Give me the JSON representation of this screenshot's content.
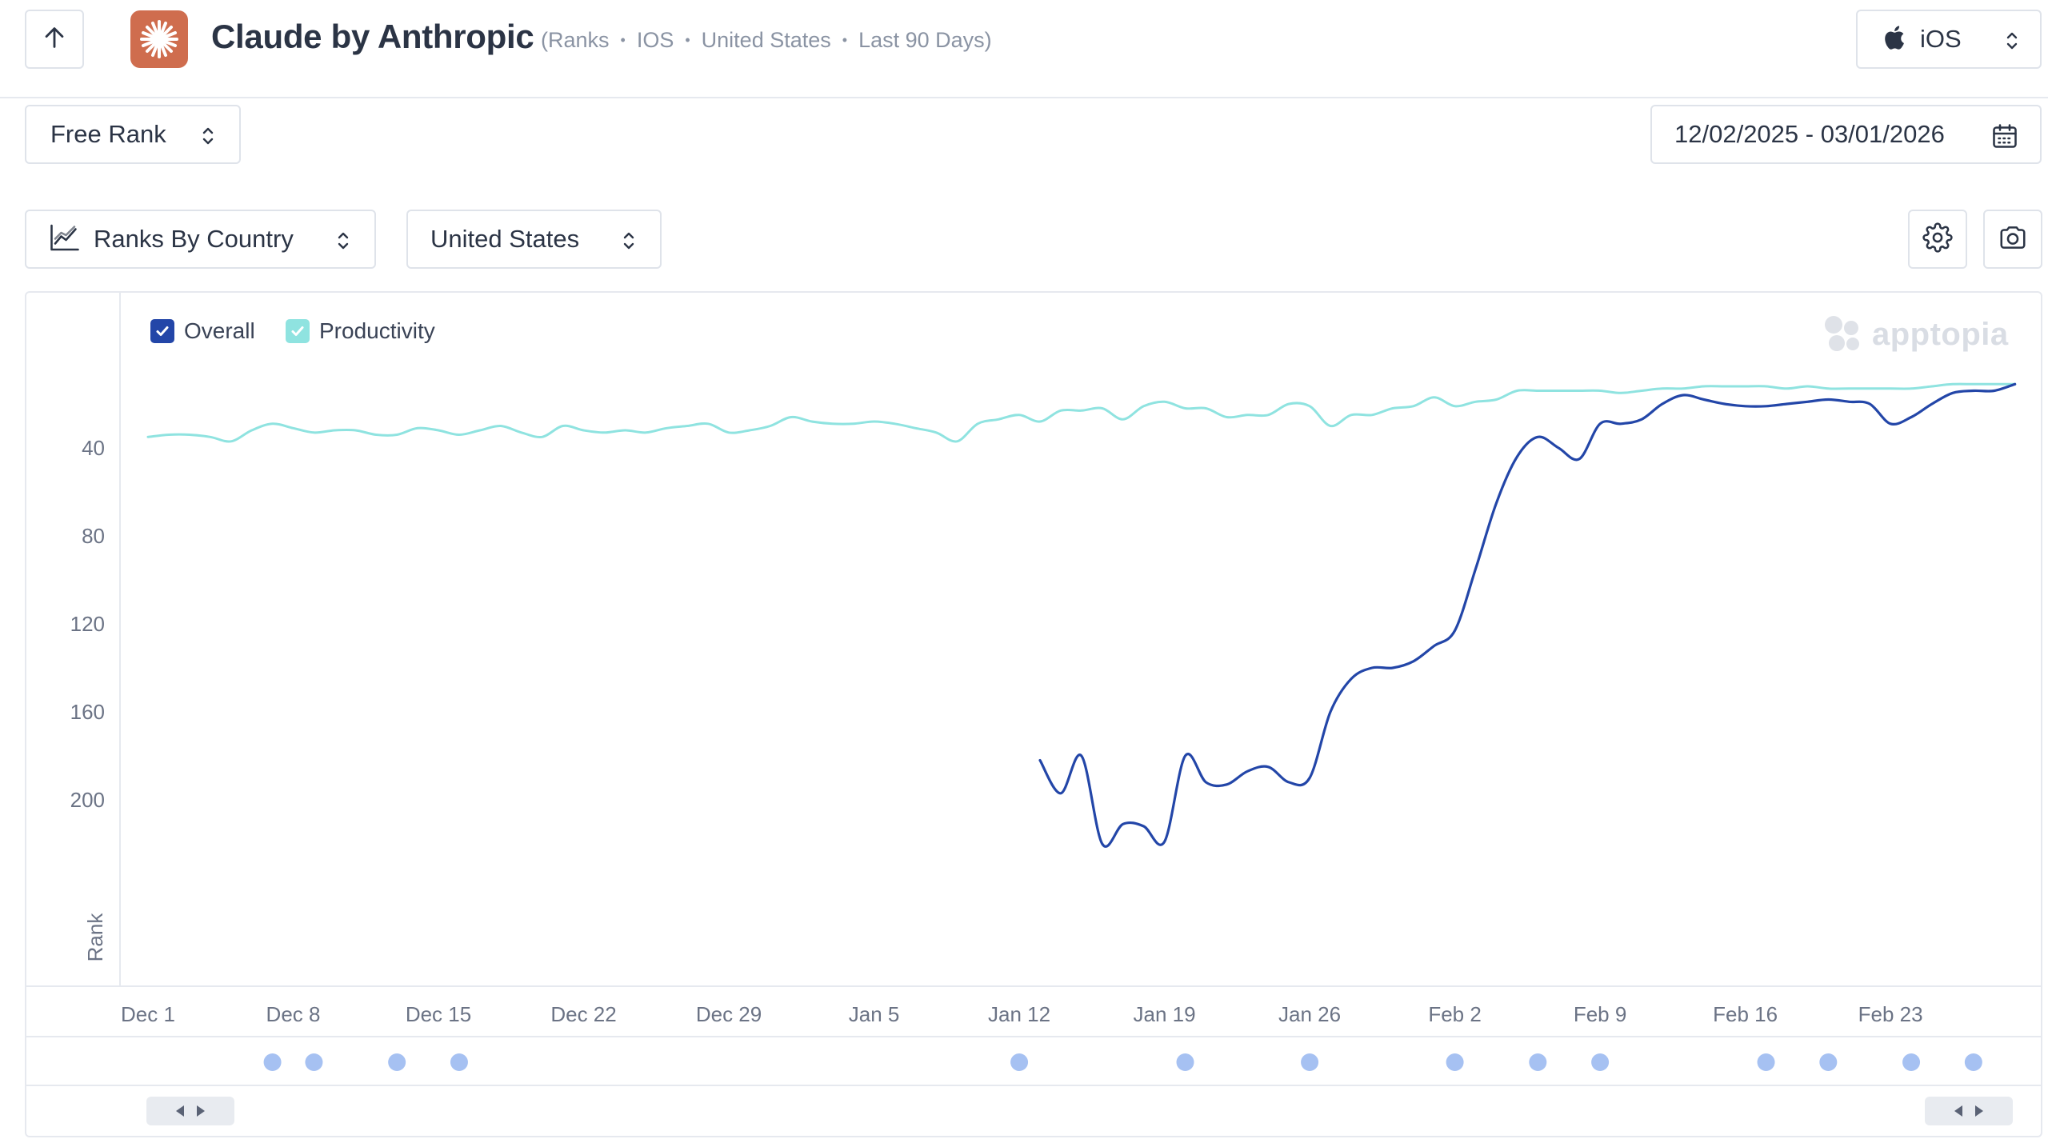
{
  "header": {
    "app_title": "Claude by Anthropic",
    "meta": [
      "(Ranks",
      "IOS",
      "United States",
      "Last 90 Days)"
    ],
    "platform": "iOS"
  },
  "controls": {
    "rank_type": "Free Rank",
    "date_range": "12/02/2025 - 03/01/2026",
    "view": "Ranks By Country",
    "country": "United States"
  },
  "legend": [
    {
      "label": "Overall",
      "color": "#2346a8",
      "checked": true
    },
    {
      "label": "Productivity",
      "color": "#8fe3e0",
      "checked": true
    }
  ],
  "watermark": "apptopia",
  "chart_data": {
    "type": "line",
    "ylabel": "Rank",
    "y_reversed": true,
    "ylim": [
      1,
      255
    ],
    "yticks": [
      40,
      80,
      120,
      160,
      200
    ],
    "x_ticks": [
      "Dec 1",
      "Dec 8",
      "Dec 15",
      "Dec 22",
      "Dec 29",
      "Jan 5",
      "Jan 12",
      "Jan 19",
      "Jan 26",
      "Feb 2",
      "Feb 9",
      "Feb 16",
      "Feb 23"
    ],
    "x_start": "2025-12-02",
    "x_end": "2026-03-01",
    "series": [
      {
        "name": "Productivity",
        "color": "#8fe3e0",
        "points": [
          [
            "2025-12-01",
            35
          ],
          [
            "2025-12-02",
            34
          ],
          [
            "2025-12-03",
            34
          ],
          [
            "2025-12-04",
            35
          ],
          [
            "2025-12-05",
            37
          ],
          [
            "2025-12-06",
            32
          ],
          [
            "2025-12-07",
            29
          ],
          [
            "2025-12-08",
            31
          ],
          [
            "2025-12-09",
            33
          ],
          [
            "2025-12-10",
            32
          ],
          [
            "2025-12-11",
            32
          ],
          [
            "2025-12-12",
            34
          ],
          [
            "2025-12-13",
            34
          ],
          [
            "2025-12-14",
            31
          ],
          [
            "2025-12-15",
            32
          ],
          [
            "2025-12-16",
            34
          ],
          [
            "2025-12-17",
            32
          ],
          [
            "2025-12-18",
            30
          ],
          [
            "2025-12-19",
            33
          ],
          [
            "2025-12-20",
            35
          ],
          [
            "2025-12-21",
            30
          ],
          [
            "2025-12-22",
            32
          ],
          [
            "2025-12-23",
            33
          ],
          [
            "2025-12-24",
            32
          ],
          [
            "2025-12-25",
            33
          ],
          [
            "2025-12-26",
            31
          ],
          [
            "2025-12-27",
            30
          ],
          [
            "2025-12-28",
            29
          ],
          [
            "2025-12-29",
            33
          ],
          [
            "2025-12-30",
            32
          ],
          [
            "2025-12-31",
            30
          ],
          [
            "2026-01-01",
            26
          ],
          [
            "2026-01-02",
            28
          ],
          [
            "2026-01-03",
            29
          ],
          [
            "2026-01-04",
            29
          ],
          [
            "2026-01-05",
            28
          ],
          [
            "2026-01-06",
            29
          ],
          [
            "2026-01-07",
            31
          ],
          [
            "2026-01-08",
            33
          ],
          [
            "2026-01-09",
            37
          ],
          [
            "2026-01-10",
            29
          ],
          [
            "2026-01-11",
            27
          ],
          [
            "2026-01-12",
            25
          ],
          [
            "2026-01-13",
            28
          ],
          [
            "2026-01-14",
            23
          ],
          [
            "2026-01-15",
            23
          ],
          [
            "2026-01-16",
            22
          ],
          [
            "2026-01-17",
            27
          ],
          [
            "2026-01-18",
            21
          ],
          [
            "2026-01-19",
            19
          ],
          [
            "2026-01-20",
            22
          ],
          [
            "2026-01-21",
            22
          ],
          [
            "2026-01-22",
            26
          ],
          [
            "2026-01-23",
            25
          ],
          [
            "2026-01-24",
            25
          ],
          [
            "2026-01-25",
            20
          ],
          [
            "2026-01-26",
            21
          ],
          [
            "2026-01-27",
            30
          ],
          [
            "2026-01-28",
            25
          ],
          [
            "2026-01-29",
            25
          ],
          [
            "2026-01-30",
            22
          ],
          [
            "2026-01-31",
            21
          ],
          [
            "2026-02-01",
            17
          ],
          [
            "2026-02-02",
            21
          ],
          [
            "2026-02-03",
            19
          ],
          [
            "2026-02-04",
            18
          ],
          [
            "2026-02-05",
            14
          ],
          [
            "2026-02-06",
            14
          ],
          [
            "2026-02-07",
            14
          ],
          [
            "2026-02-08",
            14
          ],
          [
            "2026-02-09",
            14
          ],
          [
            "2026-02-10",
            15
          ],
          [
            "2026-02-11",
            14
          ],
          [
            "2026-02-12",
            13
          ],
          [
            "2026-02-13",
            13
          ],
          [
            "2026-02-14",
            12
          ],
          [
            "2026-02-15",
            12
          ],
          [
            "2026-02-16",
            12
          ],
          [
            "2026-02-17",
            12
          ],
          [
            "2026-02-18",
            13
          ],
          [
            "2026-02-19",
            12
          ],
          [
            "2026-02-20",
            13
          ],
          [
            "2026-02-21",
            13
          ],
          [
            "2026-02-22",
            13
          ],
          [
            "2026-02-23",
            13
          ],
          [
            "2026-02-24",
            13
          ],
          [
            "2026-02-25",
            12
          ],
          [
            "2026-02-26",
            11
          ],
          [
            "2026-02-27",
            11
          ],
          [
            "2026-02-28",
            11
          ],
          [
            "2026-03-01",
            11
          ]
        ]
      },
      {
        "name": "Overall",
        "color": "#2346a8",
        "points": [
          [
            "2026-01-13",
            182
          ],
          [
            "2026-01-14",
            197
          ],
          [
            "2026-01-15",
            180
          ],
          [
            "2026-01-16",
            220
          ],
          [
            "2026-01-17",
            211
          ],
          [
            "2026-01-18",
            212
          ],
          [
            "2026-01-19",
            219
          ],
          [
            "2026-01-20",
            180
          ],
          [
            "2026-01-21",
            192
          ],
          [
            "2026-01-22",
            193
          ],
          [
            "2026-01-23",
            187
          ],
          [
            "2026-01-24",
            185
          ],
          [
            "2026-01-25",
            192
          ],
          [
            "2026-01-26",
            190
          ],
          [
            "2026-01-27",
            160
          ],
          [
            "2026-01-28",
            145
          ],
          [
            "2026-01-29",
            140
          ],
          [
            "2026-01-30",
            140
          ],
          [
            "2026-01-31",
            137
          ],
          [
            "2026-02-01",
            130
          ],
          [
            "2026-02-02",
            123
          ],
          [
            "2026-02-03",
            95
          ],
          [
            "2026-02-04",
            65
          ],
          [
            "2026-02-05",
            44
          ],
          [
            "2026-02-06",
            35
          ],
          [
            "2026-02-07",
            40
          ],
          [
            "2026-02-08",
            45
          ],
          [
            "2026-02-09",
            29
          ],
          [
            "2026-02-10",
            29
          ],
          [
            "2026-02-11",
            27
          ],
          [
            "2026-02-12",
            20
          ],
          [
            "2026-02-13",
            16
          ],
          [
            "2026-02-14",
            18
          ],
          [
            "2026-02-15",
            20
          ],
          [
            "2026-02-16",
            21
          ],
          [
            "2026-02-17",
            21
          ],
          [
            "2026-02-18",
            20
          ],
          [
            "2026-02-19",
            19
          ],
          [
            "2026-02-20",
            18
          ],
          [
            "2026-02-21",
            19
          ],
          [
            "2026-02-22",
            20
          ],
          [
            "2026-02-23",
            29
          ],
          [
            "2026-02-24",
            26
          ],
          [
            "2026-02-25",
            20
          ],
          [
            "2026-02-26",
            15
          ],
          [
            "2026-02-27",
            14
          ],
          [
            "2026-02-28",
            14
          ],
          [
            "2026-03-01",
            11
          ]
        ]
      }
    ],
    "event_markers": [
      "2025-12-07",
      "2025-12-09",
      "2025-12-13",
      "2025-12-16",
      "2026-01-12",
      "2026-01-20",
      "2026-01-26",
      "2026-02-02",
      "2026-02-06",
      "2026-02-09",
      "2026-02-17",
      "2026-02-20",
      "2026-02-24",
      "2026-02-27"
    ]
  }
}
